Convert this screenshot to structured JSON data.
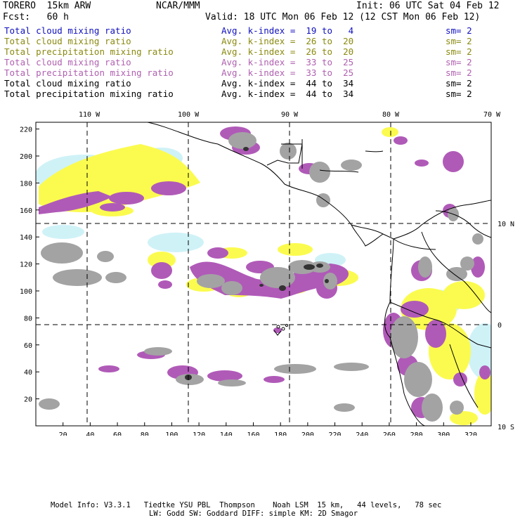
{
  "header": {
    "model": "TORERO  15km ARW",
    "org": "NCAR/MMM",
    "init": "Init: 06 UTC Sat 04 Feb 12",
    "fcst": "Fcst:   60 h",
    "valid": "Valid: 18 UTC Mon 06 Feb 12 (12 CST Mon 06 Feb 12)"
  },
  "legend": [
    {
      "field": "Total cloud mixing ratio",
      "kindex": "Avg. k-index =  19 to   4",
      "sm": "sm= 2",
      "color": "#1010c0"
    },
    {
      "field": "Total cloud mixing ratio",
      "kindex": "Avg. k-index =  26 to  20",
      "sm": "sm= 2",
      "color": "#8a8a10"
    },
    {
      "field": "Total precipitation mixing ratio",
      "kindex": "Avg. k-index =  26 to  20",
      "sm": "sm= 2",
      "color": "#8a8a10"
    },
    {
      "field": "Total cloud mixing ratio",
      "kindex": "Avg. k-index =  33 to  25",
      "sm": "sm= 2",
      "color": "#b060b0"
    },
    {
      "field": "Total precipitation mixing ratio",
      "kindex": "Avg. k-index =  33 to  25",
      "sm": "sm= 2",
      "color": "#b060b0"
    },
    {
      "field": "Total cloud mixing ratio",
      "kindex": "Avg. k-index =  44 to  34",
      "sm": "sm= 2",
      "color": "#000000"
    },
    {
      "field": "Total precipitation mixing ratio",
      "kindex": "Avg. k-index =  44 to  34",
      "sm": "sm= 2",
      "color": "#000000"
    }
  ],
  "map": {
    "lon_labels": [
      "110 W",
      "100 W",
      "90 W",
      "80 W",
      "70 W"
    ],
    "lat_labels": [
      "10 N",
      "0",
      "10 S"
    ],
    "x_ticks": [
      "20",
      "40",
      "60",
      "80",
      "100",
      "120",
      "140",
      "160",
      "180",
      "200",
      "220",
      "240",
      "260",
      "280",
      "300",
      "320"
    ],
    "y_ticks": [
      "220",
      "200",
      "180",
      "160",
      "140",
      "120",
      "100",
      "80",
      "60",
      "40",
      "20"
    ],
    "x_range": [
      0,
      335
    ],
    "y_range": [
      0,
      225
    ],
    "colors": {
      "light_blue": "#cff2f7",
      "yellow": "#fbfb4f",
      "purple": "#b05ab8",
      "gray": "#a3a3a3",
      "dark": "#333333"
    }
  },
  "footer": {
    "line1": "Model Info: V3.3.1   Tiedtke YSU PBL  Thompson    Noah LSM  15 km,   44 levels,   78 sec",
    "line2": "LW: Godd SW: Goddard DIFF: simple KM: 2D Smagor"
  }
}
